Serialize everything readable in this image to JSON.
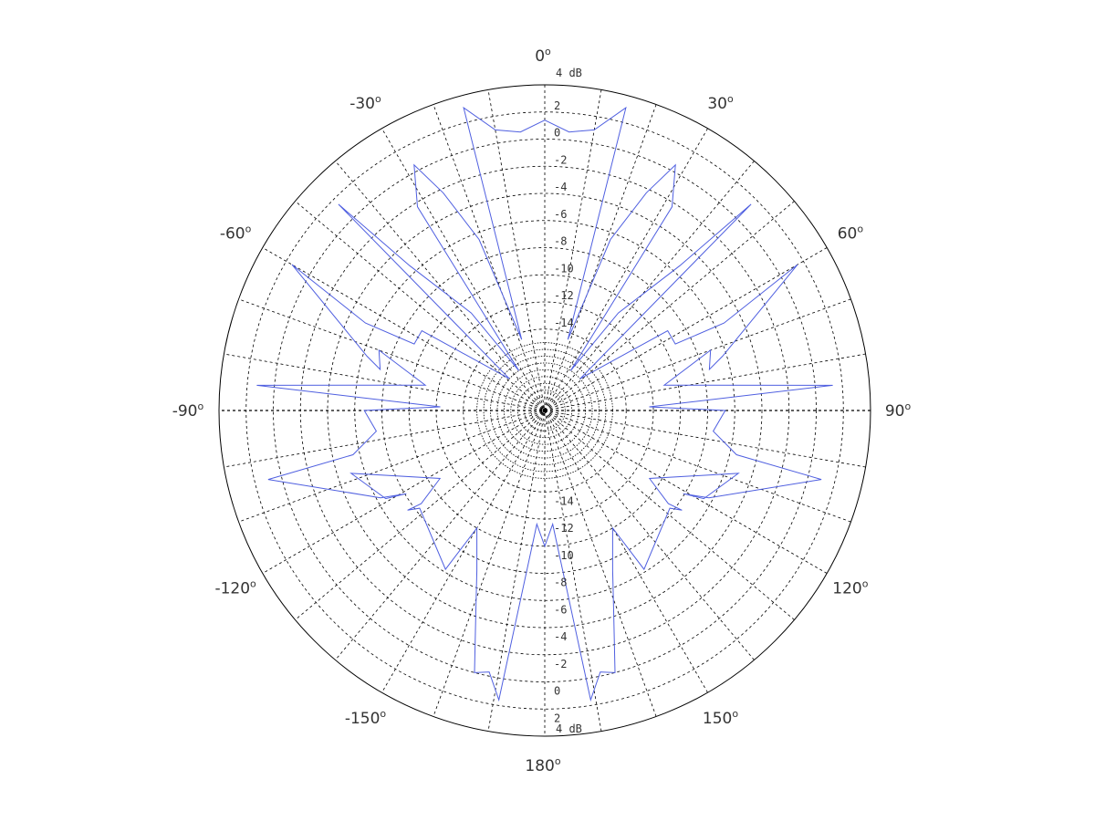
{
  "chart_data": {
    "type": "line",
    "coordinate_system": "polar",
    "title": "",
    "theta_zero": "top",
    "theta_direction": "clockwise",
    "angle_tick_labels": [
      {
        "angle": 0,
        "text": "0"
      },
      {
        "angle": 30,
        "text": "30"
      },
      {
        "angle": 60,
        "text": "60"
      },
      {
        "angle": 90,
        "text": "90"
      },
      {
        "angle": 120,
        "text": "120"
      },
      {
        "angle": 150,
        "text": "150"
      },
      {
        "angle": 180,
        "text": "180"
      },
      {
        "angle": -150,
        "text": "-150"
      },
      {
        "angle": -120,
        "text": "-120"
      },
      {
        "angle": -90,
        "text": "-90"
      },
      {
        "angle": -60,
        "text": "-60"
      },
      {
        "angle": -30,
        "text": "-30"
      }
    ],
    "degree_symbol": "o",
    "radial_axis": {
      "rlim": [
        -20,
        4
      ],
      "unit_label": "4 dB",
      "tick_values": [
        -14,
        -12,
        -10,
        -8,
        -6,
        -4,
        -2,
        0,
        2
      ],
      "tick_labels": [
        "-14",
        "-12",
        "-10",
        "-8",
        "-6",
        "-4",
        "-2",
        "0",
        "2"
      ],
      "extra_rings": [
        -19,
        -18.5,
        -18,
        -17.5,
        -17,
        -16.5,
        -16,
        -15.5,
        -15
      ],
      "spoke_step_deg": 10
    },
    "grid": true,
    "legend": "none",
    "colors": {
      "series": "#4f5fe0",
      "grid": "#000000",
      "frame": "#000000"
    },
    "series": [
      {
        "points": [
          [
            0,
            1.4
          ],
          [
            -5,
            0.6
          ],
          [
            -10,
            1.0
          ],
          [
            -15,
            3.1
          ],
          [
            -18,
            -14.5
          ],
          [
            -21,
            -6.5
          ],
          [
            -25,
            -2.3
          ],
          [
            -28,
            0.5
          ],
          [
            -32,
            -2.3
          ],
          [
            -33,
            -16.5
          ],
          [
            -37,
            -11.0
          ],
          [
            -43,
            -5.4
          ],
          [
            -45,
            1.5
          ],
          [
            -48,
            -16.5
          ],
          [
            -57,
            -9.2
          ],
          [
            -63,
            -9.2
          ],
          [
            -64,
            -5.3
          ],
          [
            -60,
            1.5
          ],
          [
            -73,
            -6.3
          ],
          [
            -76,
            -7.5
          ],
          [
            -70,
            -7.0
          ],
          [
            -78,
            -11.0
          ],
          [
            -85,
            1.3
          ],
          [
            -88,
            -12.3
          ],
          [
            -90,
            -6.7
          ],
          [
            -97,
            -7.5
          ],
          [
            -103,
            -5.5
          ],
          [
            -104,
            1.0
          ],
          [
            -118,
            -6.3
          ],
          [
            -121,
            -8.1
          ],
          [
            -119,
            -6.6
          ],
          [
            -108,
            -5.0
          ],
          [
            -123,
            -10.8
          ],
          [
            -127,
            -8.6
          ],
          [
            -126,
            -7.5
          ],
          [
            -128,
            -8.3
          ],
          [
            -148,
            -6.2
          ],
          [
            -150,
            -10.0
          ],
          [
            -157,
            -7.2
          ],
          [
            -161,
            -4.4
          ],
          [
            -165,
            0.0
          ],
          [
            -168,
            -0.3
          ],
          [
            -171,
            1.6
          ],
          [
            -176,
            -11.6
          ],
          [
            -180,
            -10.0
          ],
          [
            176,
            -11.6
          ],
          [
            171,
            1.6
          ],
          [
            168,
            -0.3
          ],
          [
            165,
            0.0
          ],
          [
            161,
            -4.4
          ],
          [
            157,
            -7.2
          ],
          [
            150,
            -10.0
          ],
          [
            148,
            -6.2
          ],
          [
            128,
            -8.3
          ],
          [
            126,
            -7.5
          ],
          [
            127,
            -8.6
          ],
          [
            123,
            -10.8
          ],
          [
            108,
            -5.0
          ],
          [
            119,
            -6.6
          ],
          [
            121,
            -8.1
          ],
          [
            118,
            -6.3
          ],
          [
            104,
            1.0
          ],
          [
            103,
            -5.5
          ],
          [
            97,
            -7.5
          ],
          [
            90,
            -6.7
          ],
          [
            88,
            -12.3
          ],
          [
            85,
            1.3
          ],
          [
            78,
            -11.0
          ],
          [
            70,
            -7.0
          ],
          [
            76,
            -7.5
          ],
          [
            73,
            -6.3
          ],
          [
            60,
            1.5
          ],
          [
            64,
            -5.3
          ],
          [
            63,
            -9.2
          ],
          [
            57,
            -9.2
          ],
          [
            48,
            -16.5
          ],
          [
            45,
            1.5
          ],
          [
            43,
            -5.4
          ],
          [
            37,
            -11.0
          ],
          [
            33,
            -16.5
          ],
          [
            32,
            -2.3
          ],
          [
            28,
            0.5
          ],
          [
            25,
            -2.3
          ],
          [
            21,
            -6.5
          ],
          [
            18,
            -14.5
          ],
          [
            15,
            3.1
          ],
          [
            10,
            1.0
          ],
          [
            5,
            0.6
          ],
          [
            0,
            1.4
          ]
        ]
      }
    ]
  }
}
